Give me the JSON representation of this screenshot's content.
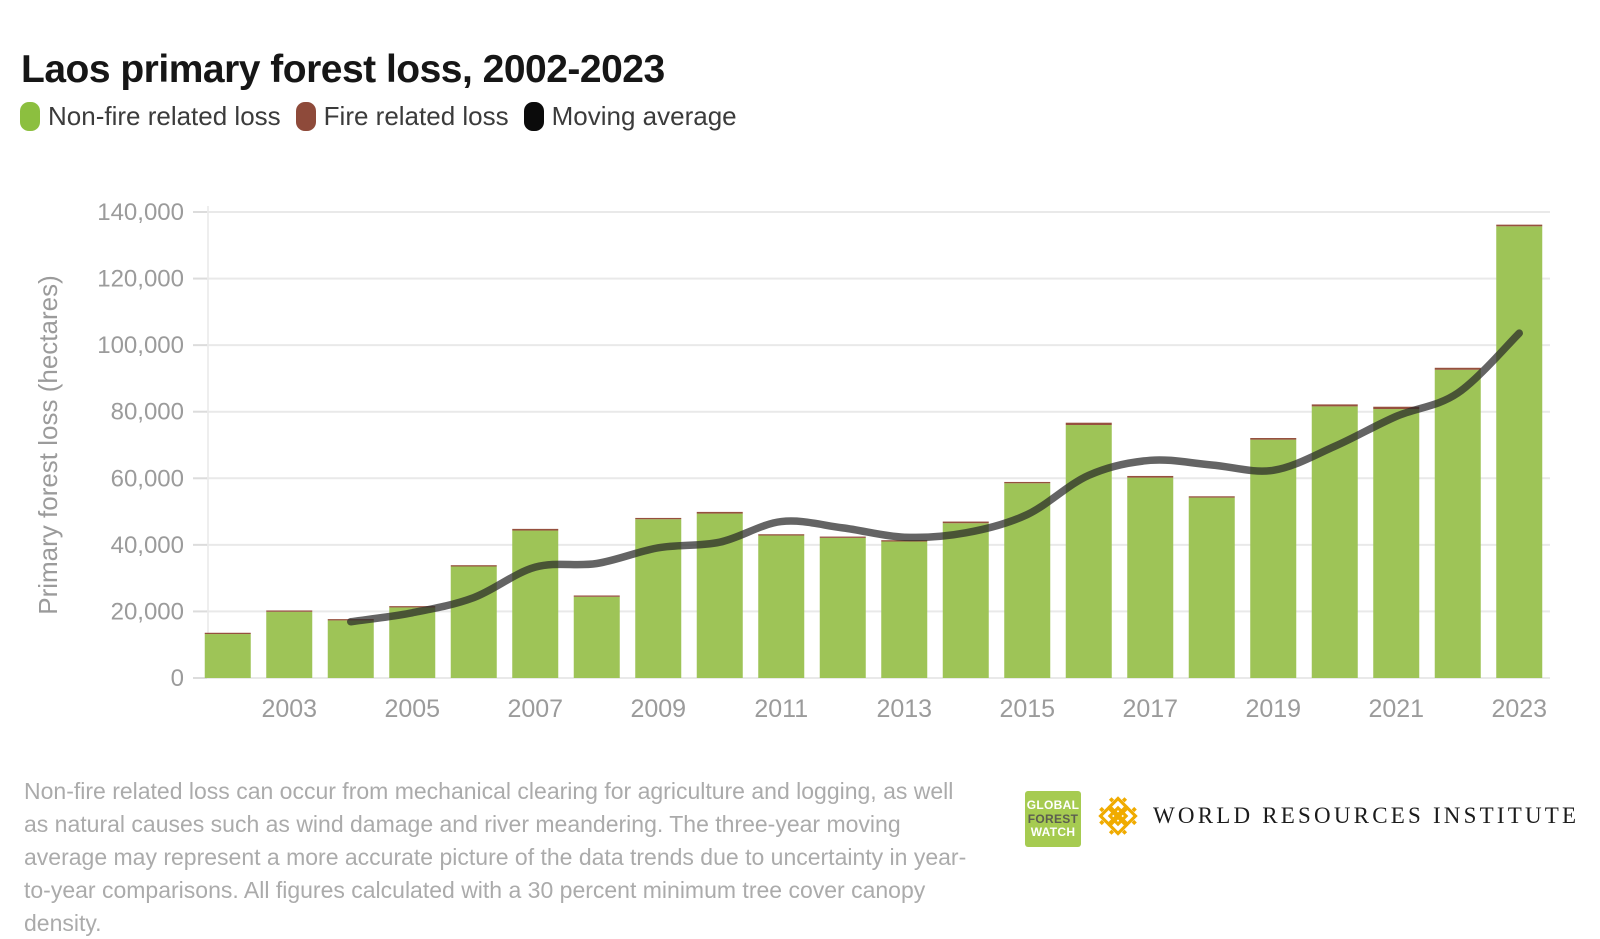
{
  "header": {
    "title": "Laos primary forest loss, 2002-2023"
  },
  "legend": {
    "items": [
      {
        "label": "Non-fire related loss",
        "color": "#8cbf3f"
      },
      {
        "label": "Fire related loss",
        "color": "#8e4a3a"
      },
      {
        "label": "Moving average",
        "color": "#0b0b0b"
      }
    ]
  },
  "chart_data": {
    "type": "bar",
    "title": "Laos primary forest loss, 2002-2023",
    "xlabel": "",
    "ylabel": "Primary forest loss (hectares)",
    "ylim": [
      0,
      140000
    ],
    "grid": "horizontal",
    "legend_position": "top-left",
    "categories": [
      2002,
      2003,
      2004,
      2005,
      2006,
      2007,
      2008,
      2009,
      2010,
      2011,
      2012,
      2013,
      2014,
      2015,
      2016,
      2017,
      2018,
      2019,
      2020,
      2021,
      2022,
      2023
    ],
    "series": [
      {
        "name": "Non-fire related loss",
        "type": "bar",
        "color": "#9ec457",
        "values": [
          13200,
          19900,
          17300,
          21200,
          33500,
          44300,
          24400,
          47700,
          49400,
          42800,
          42100,
          41000,
          46500,
          58500,
          76000,
          60200,
          54200,
          71600,
          81600,
          80800,
          92600,
          135700
        ]
      },
      {
        "name": "Fire related loss",
        "type": "bar-stacked",
        "color": "#96503e",
        "values": [
          100,
          150,
          100,
          150,
          200,
          500,
          200,
          300,
          500,
          300,
          300,
          400,
          500,
          400,
          700,
          500,
          300,
          500,
          600,
          700,
          600,
          500
        ]
      },
      {
        "name": "Moving average",
        "type": "line",
        "color": "#282828",
        "values": [
          null,
          null,
          16900,
          19600,
          24150,
          33300,
          34400,
          39100,
          40800,
          47000,
          45100,
          42300,
          43600,
          49100,
          60900,
          65400,
          64000,
          62400,
          69600,
          78600,
          85600,
          103600
        ]
      }
    ],
    "yticks": [
      {
        "value": 0,
        "label": "0"
      },
      {
        "value": 20000,
        "label": "20,000"
      },
      {
        "value": 40000,
        "label": "40,000"
      },
      {
        "value": 60000,
        "label": "60,000"
      },
      {
        "value": 80000,
        "label": "80,000"
      },
      {
        "value": 100000,
        "label": "100,000"
      },
      {
        "value": 120000,
        "label": "120,000"
      },
      {
        "value": 140000,
        "label": "140,000"
      }
    ],
    "xticks": [
      2003,
      2005,
      2007,
      2009,
      2011,
      2013,
      2015,
      2017,
      2019,
      2021,
      2023
    ]
  },
  "footer": {
    "note": "Non-fire related loss can occur from mechanical clearing for agriculture and logging, as well as natural causes such as wind damage and river meandering. The three-year moving average may represent a more accurate picture of the data trends due to uncertainty in year-to-year comparisons. All figures calculated with a 30 percent minimum tree cover canopy density."
  },
  "logos": {
    "gfw": {
      "line1": "GLOBAL",
      "line2": "FOREST",
      "line3": "WATCH",
      "color": "#a6cb51"
    },
    "wri": {
      "name": "WORLD RESOURCES INSTITUTE",
      "icon_color": "#f0ab00"
    }
  }
}
